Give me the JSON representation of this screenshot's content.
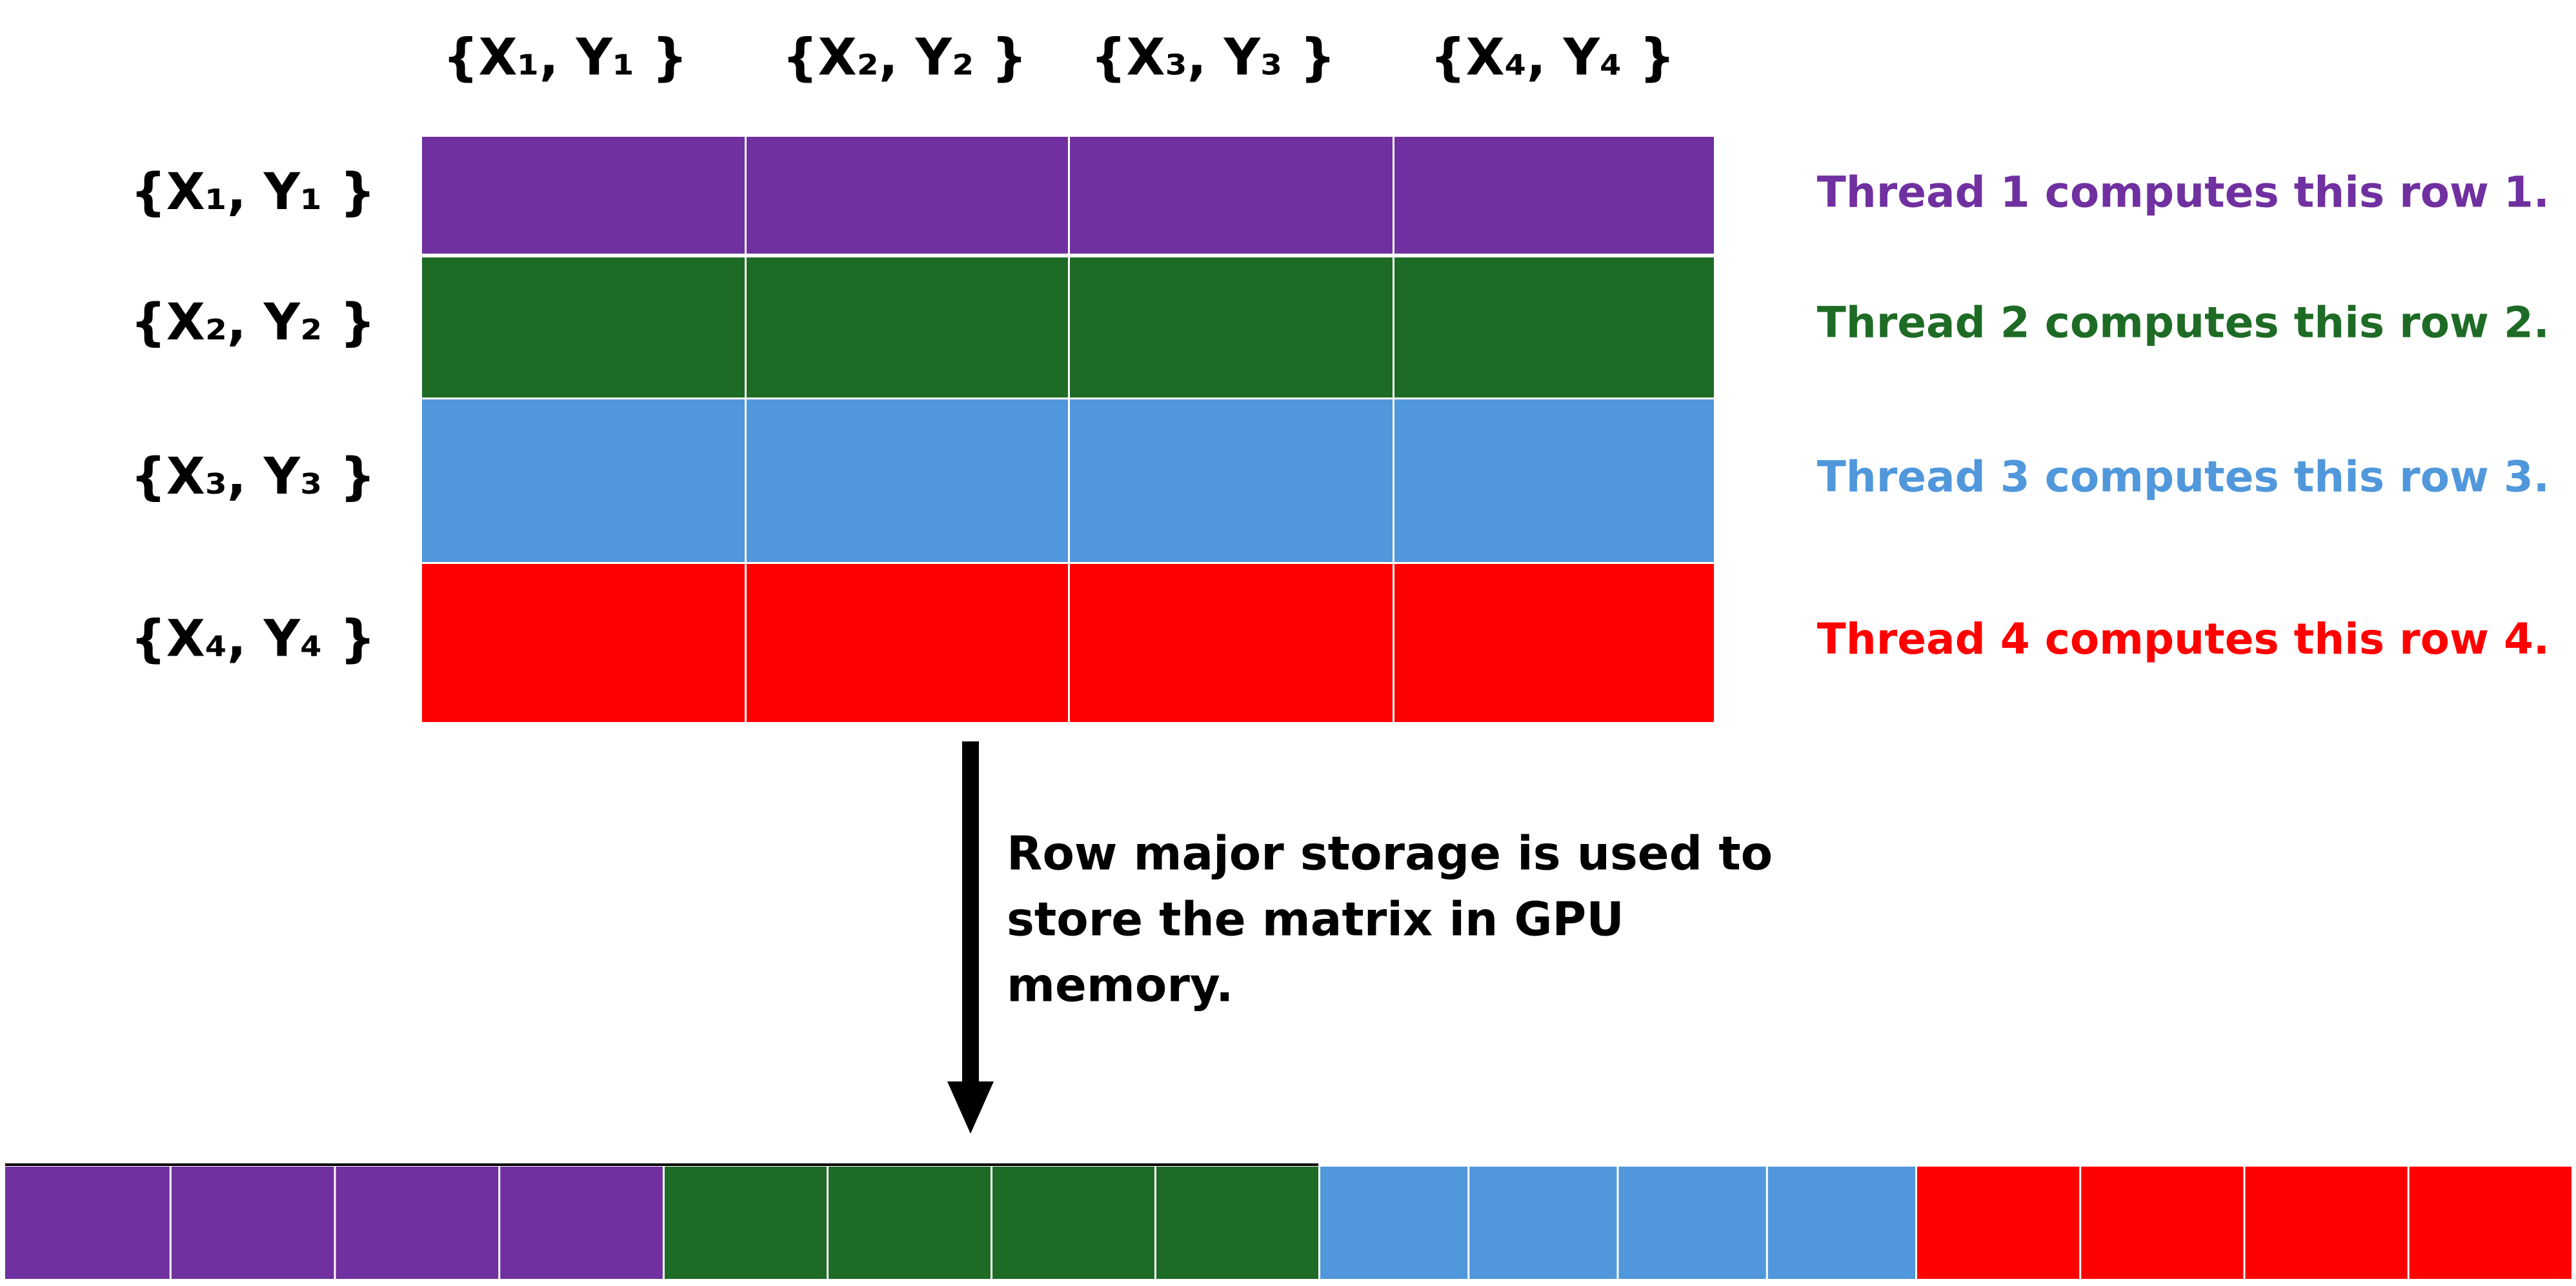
{
  "columns": [
    "{X₁, Y₁ }",
    "{X₂, Y₂ }",
    "{X₃, Y₃ }",
    "{X₄, Y₄ }"
  ],
  "rows": [
    {
      "label": "{X₁, Y₁ }",
      "color": "#7030a0",
      "thread": "Thread 1 computes this row 1."
    },
    {
      "label": "{X₂, Y₂ }",
      "color": "#1e6b25",
      "thread": "Thread 2 computes this row 2."
    },
    {
      "label": "{X₃, Y₃ }",
      "color": "#5097db",
      "thread": "Thread 3 computes this row 3."
    },
    {
      "label": "{X₄, Y₄ }",
      "color": "#ff0000",
      "thread": "Thread 4 computes this row 4."
    }
  ],
  "note": [
    "Row major storage is used to",
    "store the matrix in GPU",
    "memory."
  ]
}
